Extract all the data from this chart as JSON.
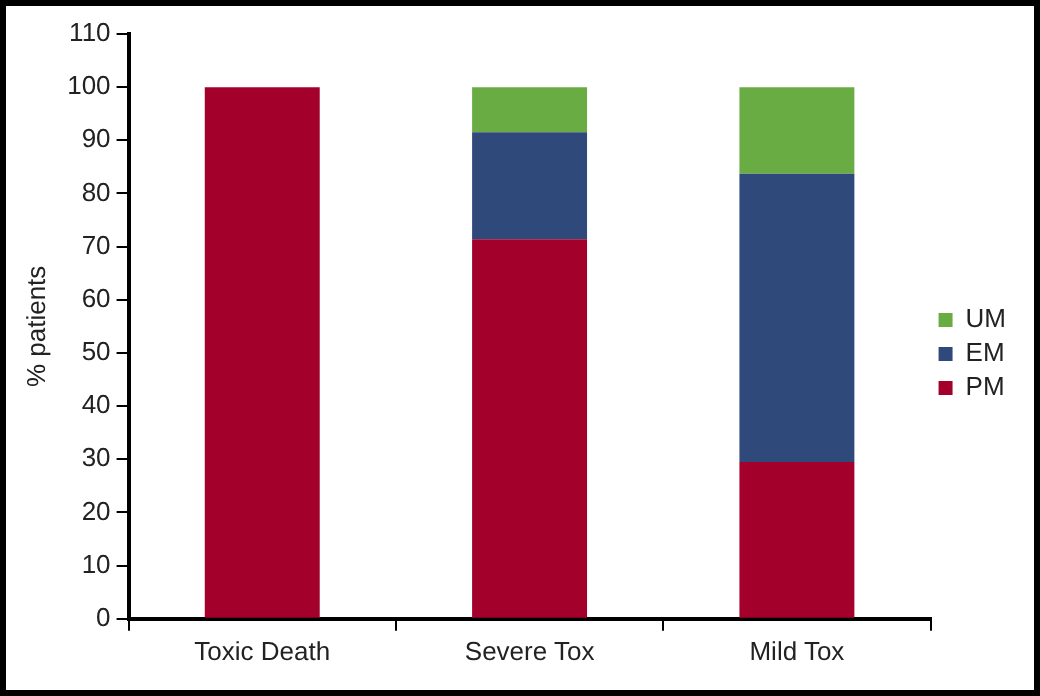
{
  "chart_data": {
    "type": "bar",
    "stacked": true,
    "ylabel": "% patients",
    "categories": [
      "Toxic Death",
      "Severe Tox",
      "Mild Tox"
    ],
    "series": [
      {
        "name": "PM",
        "color": "#a3002b",
        "values": [
          100,
          71.4,
          29.5
        ]
      },
      {
        "name": "EM",
        "color": "#2f4a7a",
        "values": [
          0,
          20.1,
          54.2
        ]
      },
      {
        "name": "UM",
        "color": "#6aac44",
        "values": [
          0,
          8.5,
          16.3
        ]
      }
    ],
    "ylim": [
      0,
      110
    ],
    "yticks": [
      0,
      10,
      20,
      30,
      40,
      50,
      60,
      70,
      80,
      90,
      100,
      110
    ],
    "grid": false,
    "legend": "right"
  }
}
